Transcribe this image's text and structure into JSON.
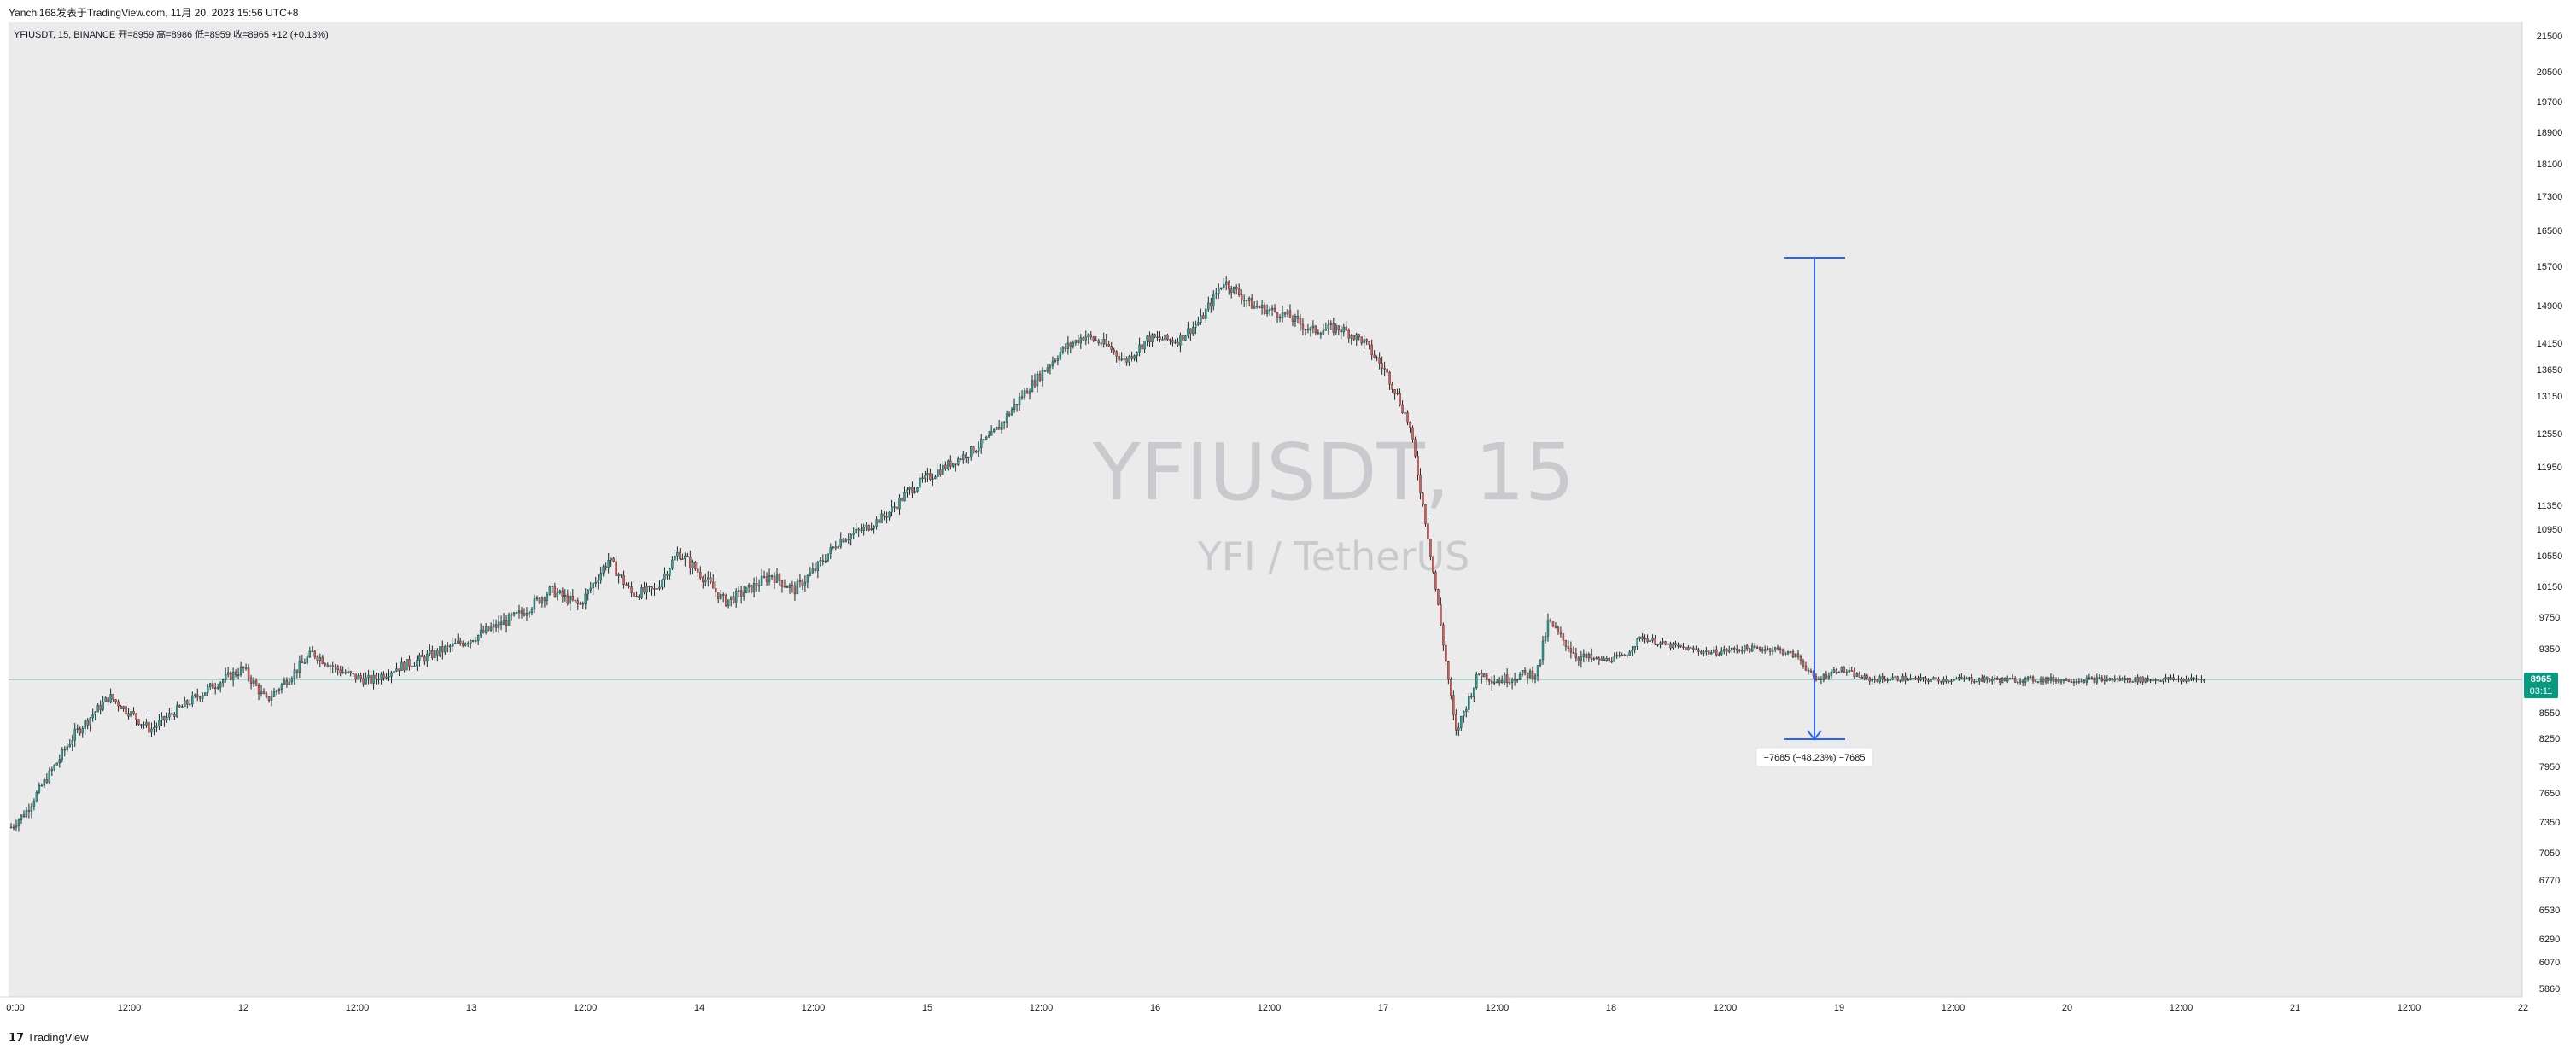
{
  "header": {
    "publisher": "Yanchi168发表于TradingView.com,  11月 20, 2023 15:56 UTC+8"
  },
  "footer": {
    "brand": "TradingView"
  },
  "colors": {
    "up": "#26a69a",
    "down": "#ef5350",
    "measure": "#2962ff",
    "price_badge": "#089981",
    "bg": "#ebebeb"
  },
  "chart_data": {
    "type": "candlestick",
    "symbol_info": "YFIUSDT, 15, BINANCE  开=8959  高=8986  低=8959  收=8965  +12 (+0.13%)",
    "watermark": {
      "main": "YFIUSDT, 15",
      "sub": "YFI  /  TetherUS"
    },
    "y_axis": {
      "ticks": [
        21500,
        20500,
        19700,
        18900,
        18100,
        17300,
        16500,
        15700,
        14900,
        14150,
        13650,
        13150,
        12550,
        11950,
        11350,
        10950,
        10550,
        10150,
        9750,
        9350,
        8550,
        8250,
        7950,
        7650,
        7350,
        7050,
        6770,
        6530,
        6290,
        6070,
        5860
      ],
      "tick_labels": [
        "21500",
        "20500",
        "19700",
        "18900",
        "18100",
        "17300",
        "16500",
        "15700",
        "14900",
        "14150",
        "13650",
        "13150",
        "12550",
        "11950",
        "11350",
        "10950",
        "10550",
        "10150",
        "9750",
        "9350",
        "8550",
        "8250",
        "7950",
        "7650",
        "7350",
        "7050",
        "6770",
        "6530",
        "6290",
        "6070",
        "5860"
      ],
      "range": [
        5700,
        21800
      ]
    },
    "x_axis": {
      "tick_labels": [
        "0:00",
        "12:00",
        "12",
        "12:00",
        "13",
        "12:00",
        "14",
        "12:00",
        "15",
        "12:00",
        "16",
        "12:00",
        "17",
        "12:00",
        "18",
        "12:00",
        "19",
        "12:00",
        "20",
        "12:00",
        "21",
        "12:00",
        "22"
      ]
    },
    "last_price": {
      "value": 8965,
      "label": "8965",
      "countdown": "03:11"
    },
    "price_path": {
      "t": [
        0,
        5,
        12,
        22,
        34,
        48,
        54,
        62,
        70,
        80,
        88,
        96,
        104,
        112,
        118,
        124,
        132,
        140,
        150,
        160,
        168,
        176,
        186,
        196,
        206,
        214,
        222,
        230,
        238,
        246,
        254,
        262,
        270,
        278,
        286,
        294,
        302,
        310,
        320,
        330,
        338,
        346,
        354,
        362,
        370,
        378,
        384,
        392,
        402,
        410,
        418,
        428,
        440,
        448,
        458,
        466,
        474,
        482,
        490,
        498,
        506,
        512,
        518,
        526,
        530,
        534,
        540,
        548,
        556,
        562,
        570,
        578,
        586,
        596,
        608,
        616,
        622,
        630,
        640,
        652,
        658,
        666,
        674,
        680,
        688,
        696,
        700,
        710,
        720,
        728,
        738,
        746,
        756
      ],
      "price": [
        7300,
        7450,
        7800,
        8300,
        8750,
        8350,
        8500,
        8700,
        8900,
        9100,
        8700,
        9000,
        9300,
        9100,
        9000,
        8950,
        9100,
        9200,
        9350,
        9500,
        9650,
        9800,
        10100,
        9900,
        10500,
        10050,
        10100,
        10600,
        10300,
        9950,
        10100,
        10300,
        10100,
        10400,
        10800,
        10950,
        11200,
        11600,
        11900,
        12200,
        12500,
        13000,
        13500,
        14000,
        14300,
        14100,
        13800,
        14250,
        14200,
        14600,
        15400,
        14900,
        14700,
        14400,
        14450,
        14200,
        13600,
        12700,
        10400,
        8300,
        9050,
        8950,
        9000,
        9050,
        9700,
        9500,
        9250,
        9200,
        9250,
        9500,
        9400,
        9350,
        9300,
        9350,
        9350,
        9250,
        8950,
        9100,
        8965,
        8980,
        8960,
        8965,
        8970,
        8965,
        8960,
        8965,
        8965,
        8962,
        8965,
        8965,
        8965,
        8965,
        8965
      ]
    },
    "measure": {
      "value": -7685,
      "label": "−7685 (−48.23%) −7685"
    }
  }
}
